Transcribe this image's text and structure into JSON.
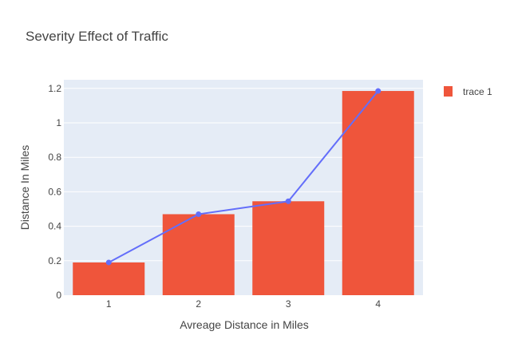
{
  "chart_data": {
    "type": "bar",
    "title": "Severity Effect of Traffic",
    "xlabel": "Avreage Distance in Miles",
    "ylabel": "Distance In Miles",
    "x": [
      1,
      2,
      3,
      4
    ],
    "x_tick_labels": [
      "1",
      "2",
      "3",
      "4"
    ],
    "y_ticks": [
      0,
      0.2,
      0.4,
      0.6,
      0.8,
      1,
      1.2
    ],
    "y_tick_labels": [
      "0",
      "0.2",
      "0.4",
      "0.6",
      "0.8",
      "1",
      "1.2"
    ],
    "ylim": [
      0,
      1.25
    ],
    "xlim": [
      0.5,
      4.5
    ],
    "grid": true,
    "legend_position": "top-right",
    "series": [
      {
        "name": "trace 1",
        "type": "bar",
        "color": "#EF553B",
        "values": [
          0.19,
          0.47,
          0.545,
          1.185
        ]
      },
      {
        "type": "line",
        "mode": "lines+markers",
        "color": "#636EFA",
        "values": [
          0.19,
          0.47,
          0.545,
          1.185
        ]
      }
    ],
    "colors": {
      "plot_background": "#E5ECF6",
      "gridline": "#ffffff",
      "text": "#444444"
    }
  }
}
